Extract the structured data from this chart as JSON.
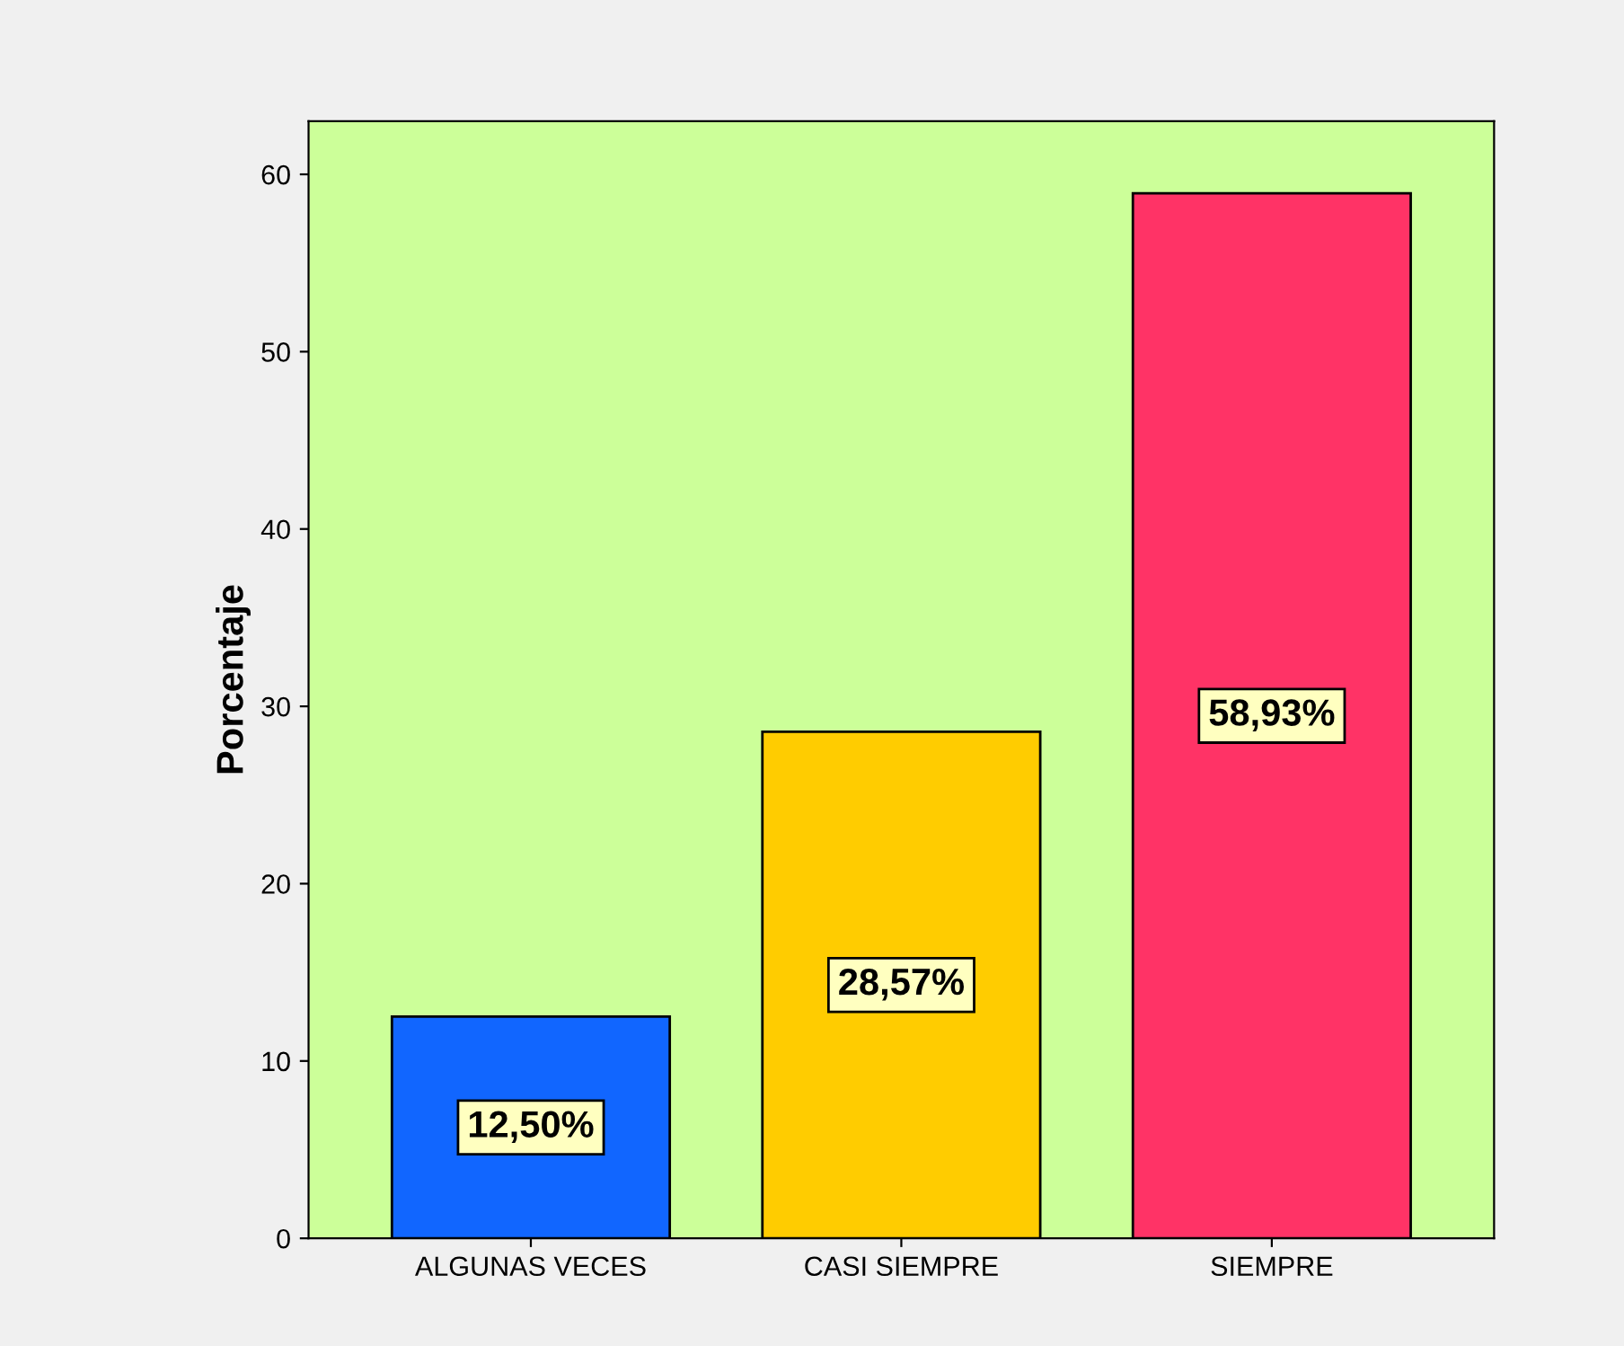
{
  "chart_data": {
    "type": "bar",
    "ylabel": "Porcentaje",
    "categories": [
      "ALGUNAS VECES",
      "CASI SIEMPRE",
      "SIEMPRE"
    ],
    "values": [
      12.5,
      28.57,
      58.93
    ],
    "value_labels": [
      "12,50%",
      "28,57%",
      "58,93%"
    ],
    "colors": [
      "#1166ff",
      "#ffcc00",
      "#ff3366"
    ],
    "ylim": [
      0,
      63
    ],
    "yticks": [
      0,
      10,
      20,
      30,
      40,
      50,
      60
    ],
    "grid": false
  }
}
